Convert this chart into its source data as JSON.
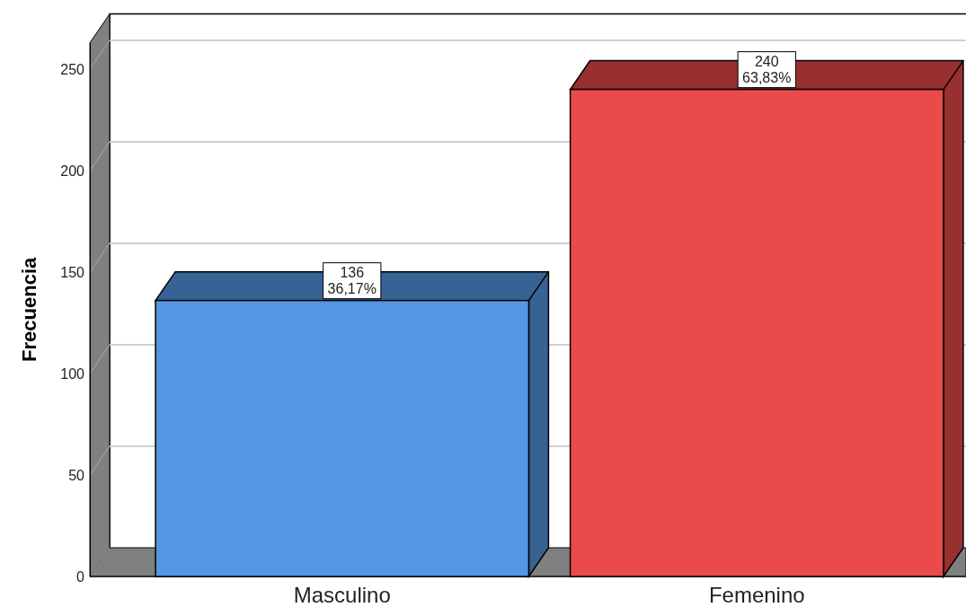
{
  "chart_data": {
    "type": "bar",
    "ylabel": "Frecuencia",
    "categories": [
      "Masculino",
      "Femenino"
    ],
    "values": [
      136,
      240
    ],
    "colors": [
      "#5496e3",
      "#eb4a4a"
    ],
    "value_labels": [
      "136\n36,17%",
      "240\n63,83%"
    ],
    "ylim": [
      0,
      263
    ],
    "yticks": [
      0,
      50,
      100,
      150,
      200,
      250
    ],
    "grid": "y"
  }
}
